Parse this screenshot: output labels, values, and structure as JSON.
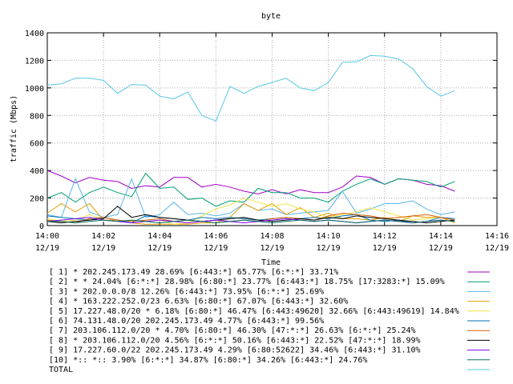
{
  "chart_data": {
    "type": "line",
    "title": "byte",
    "xlabel": "Time",
    "ylabel": "traffic (Mbps)",
    "ylim": [
      0,
      1400
    ],
    "yticks": [
      0,
      200,
      400,
      600,
      800,
      1000,
      1200,
      1400
    ],
    "xlim": [
      "14:00",
      "14:16"
    ],
    "xticks": [
      {
        "time": "14:00",
        "date": "12/19"
      },
      {
        "time": "14:02",
        "date": "12/19"
      },
      {
        "time": "14:04",
        "date": "12/19"
      },
      {
        "time": "14:06",
        "date": "12/19"
      },
      {
        "time": "14:08",
        "date": "12/19"
      },
      {
        "time": "14:10",
        "date": "12/19"
      },
      {
        "time": "14:12",
        "date": "12/19"
      },
      {
        "time": "14:14",
        "date": "12/19"
      },
      {
        "time": "14:16",
        "date": "12/19"
      }
    ],
    "grid": true,
    "legend_position": "bottom",
    "x": [
      "14:00:00",
      "14:00:30",
      "14:01:00",
      "14:01:30",
      "14:02:00",
      "14:02:30",
      "14:03:00",
      "14:03:30",
      "14:04:00",
      "14:04:30",
      "14:05:00",
      "14:05:30",
      "14:06:00",
      "14:06:30",
      "14:07:00",
      "14:07:30",
      "14:08:00",
      "14:08:30",
      "14:09:00",
      "14:09:30",
      "14:10:00",
      "14:10:30",
      "14:11:00",
      "14:11:30",
      "14:12:00",
      "14:12:30",
      "14:13:00",
      "14:13:30",
      "14:14:00",
      "14:14:30"
    ],
    "series": [
      {
        "name": "[ 1] * 202.245.173.49 28.69%  [6:443:*] 65.77% [6:*:*] 33.71%",
        "color": "#a000c8",
        "values": [
          400,
          360,
          310,
          350,
          330,
          320,
          270,
          290,
          280,
          350,
          350,
          280,
          300,
          280,
          250,
          230,
          260,
          230,
          260,
          240,
          240,
          280,
          360,
          350,
          300,
          340,
          330,
          300,
          290,
          250
        ]
      },
      {
        "name": "[ 2] * * 24.04%  [6:*:*] 28.98% [6:80:*] 23.77% [6:443:*] 18.75% [17:3283:*] 15.09%",
        "color": "#009e73",
        "values": [
          200,
          240,
          170,
          240,
          280,
          240,
          210,
          380,
          270,
          280,
          190,
          200,
          140,
          180,
          170,
          270,
          240,
          240,
          200,
          200,
          170,
          250,
          300,
          340,
          300,
          340,
          330,
          320,
          280,
          320
        ]
      },
      {
        "name": "[ 3] * 202.0.0.0/8 12.26%  [6:443:*] 73.95% [6:*:*] 25.69%",
        "color": "#56b4e9",
        "values": [
          80,
          60,
          340,
          100,
          60,
          80,
          340,
          60,
          80,
          170,
          80,
          90,
          70,
          90,
          160,
          110,
          120,
          80,
          90,
          100,
          110,
          250,
          90,
          120,
          160,
          160,
          180,
          120,
          80,
          100
        ]
      },
      {
        "name": "[ 4] * 163.222.252.0/23 6.63%  [6:80:*] 67.07% [6:443:*] 32.60%",
        "color": "#e69f00",
        "values": [
          90,
          160,
          100,
          160,
          40,
          40,
          20,
          10,
          10,
          10,
          10,
          20,
          20,
          60,
          160,
          110,
          160,
          80,
          130,
          60,
          90,
          50,
          50,
          40,
          60,
          30,
          70,
          60,
          60,
          20
        ]
      },
      {
        "name": "[ 5] 17.227.48.0/20 * 6.18%  [6:80:*] 46.47% [6:443:49620] 32.66% [6:443:49619] 14.84%",
        "color": "#f0e442",
        "values": [
          50,
          30,
          40,
          80,
          40,
          30,
          40,
          30,
          40,
          10,
          20,
          70,
          120,
          150,
          200,
          170,
          140,
          160,
          120,
          100,
          60,
          80,
          100,
          130,
          100,
          70,
          40,
          50,
          60,
          40
        ]
      },
      {
        "name": "[ 6] 74.131.48.0/20 202.245.173.49 4.77%  [6:443:*] 99.56%",
        "color": "#0072b2",
        "values": [
          70,
          60,
          50,
          40,
          60,
          40,
          20,
          70,
          60,
          50,
          40,
          60,
          50,
          60,
          50,
          40,
          50,
          60,
          50,
          60,
          50,
          70,
          80,
          40,
          30,
          40,
          20,
          30,
          60,
          50
        ]
      },
      {
        "name": "[ 7] 203.106.112.0/20 * 4.70%  [6:80:*] 46.30% [47:*:*] 26.63% [6:*:*] 25.24%",
        "color": "#d55e00",
        "values": [
          40,
          30,
          20,
          50,
          60,
          40,
          30,
          40,
          50,
          30,
          40,
          30,
          40,
          30,
          40,
          30,
          50,
          60,
          50,
          40,
          70,
          90,
          80,
          70,
          50,
          60,
          70,
          80,
          60,
          40
        ]
      },
      {
        "name": "[ 8] * 203.106.112.0/20 4.56%  [6:*:*] 50.16% [6:443:*] 22.52% [47:*:*] 18.99%",
        "color": "#000000",
        "values": [
          30,
          20,
          30,
          40,
          50,
          140,
          60,
          80,
          60,
          50,
          40,
          30,
          40,
          50,
          60,
          40,
          30,
          40,
          50,
          40,
          60,
          50,
          70,
          60,
          50,
          40,
          30,
          20,
          30,
          40
        ]
      },
      {
        "name": "[ 9] 17.227.60.0/22 202.245.173.49 4.29%  [6:80:52622] 34.46% [6:443:*] 31.10%",
        "color": "#8000ff",
        "values": [
          30,
          40,
          50,
          60,
          40,
          30,
          20,
          30,
          40,
          30,
          20,
          30,
          40,
          30,
          20,
          30,
          40,
          50,
          40,
          30,
          40,
          30,
          20,
          30,
          40,
          30,
          20,
          30,
          40,
          30
        ]
      },
      {
        "name": "[10] *:: *:: 3.90%  [6:*:*] 34.87% [6:80:*] 34.26% [6:443:*] 24.76%",
        "color": "#007060",
        "values": [
          30,
          30,
          20,
          30,
          40,
          30,
          40,
          30,
          20,
          30,
          40,
          30,
          20,
          30,
          40,
          30,
          20,
          30,
          40,
          30,
          40,
          30,
          20,
          30,
          40,
          30,
          20,
          30,
          40,
          30
        ]
      },
      {
        "name": "TOTAL",
        "color": "#56c8e8",
        "values": [
          1020,
          1030,
          1070,
          1070,
          1055,
          960,
          1025,
          1020,
          940,
          920,
          970,
          800,
          760,
          1010,
          960,
          1010,
          1040,
          1070,
          1000,
          980,
          1040,
          1185,
          1190,
          1235,
          1230,
          1210,
          1140,
          1010,
          940,
          980
        ]
      }
    ]
  }
}
